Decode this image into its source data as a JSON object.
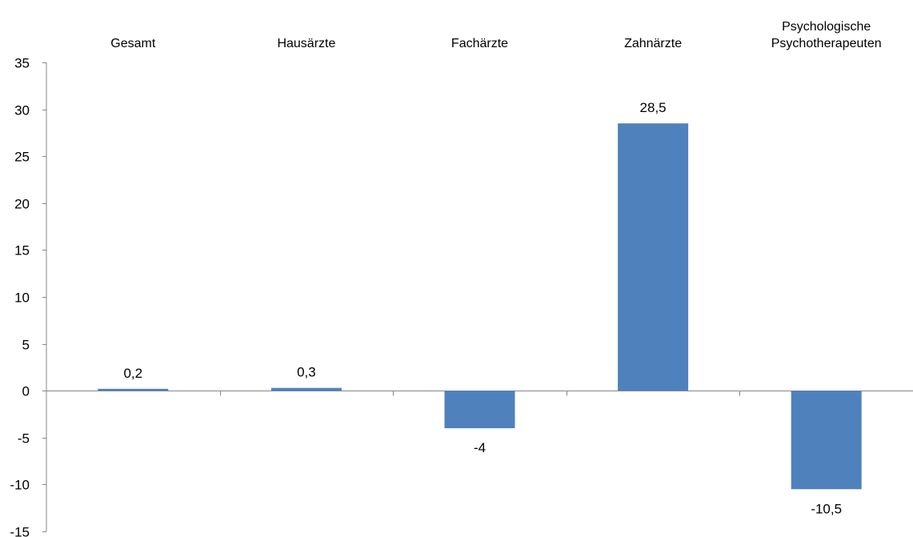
{
  "chart_data": {
    "type": "bar",
    "categories": [
      [
        "Gesamt"
      ],
      [
        "Hausärzte"
      ],
      [
        "Fachärzte"
      ],
      [
        "Zahnärzte"
      ],
      [
        "Psychologische",
        "Psychotherapeuten"
      ]
    ],
    "values": [
      0.2,
      0.3,
      -4,
      28.5,
      -10.5
    ],
    "value_labels": [
      "0,2",
      "0,3",
      "-4",
      "28,5",
      "-10,5"
    ],
    "yticks": [
      35,
      30,
      25,
      20,
      15,
      10,
      5,
      0,
      -5,
      -10,
      -15
    ],
    "ytick_labels": [
      "35",
      "30",
      "25",
      "20",
      "15",
      "10",
      "5",
      "0",
      "-5",
      "-10",
      "-15"
    ],
    "ylim": [
      -15,
      35
    ],
    "category_label_position": "top",
    "grid": false,
    "legend": false,
    "title": "",
    "xlabel": "",
    "ylabel": "",
    "bar_color": "#4F81BD",
    "axis_color": "#868686"
  }
}
